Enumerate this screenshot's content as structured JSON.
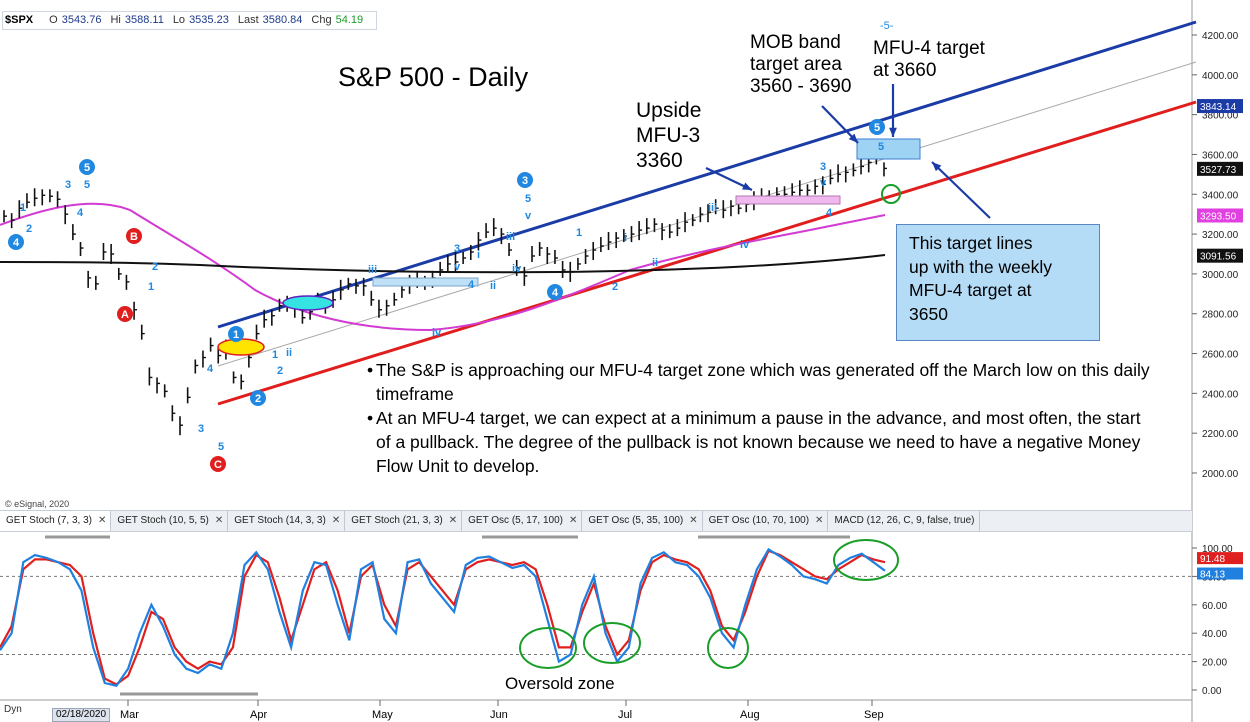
{
  "header": {
    "symbol": "$SPX",
    "fields": [
      {
        "label": "O",
        "value": "3543.76"
      },
      {
        "label": "Hi",
        "value": "3588.11"
      },
      {
        "label": "Lo",
        "value": "3535.23"
      },
      {
        "label": "Last",
        "value": "3580.84"
      },
      {
        "label": "Chg",
        "value": "54.19"
      }
    ]
  },
  "chart_data": [
    {
      "type": "line",
      "title": "S&P 500 - Daily",
      "x_ticks": [
        "Mar",
        "Apr",
        "May",
        "Jun",
        "Jul",
        "Aug",
        "Sep"
      ],
      "y_ticks": [
        "4200.00",
        "4000.00",
        "3800.00",
        "3600.00",
        "3400.00",
        "3200.00",
        "3000.00",
        "2800.00",
        "2600.00",
        "2400.00",
        "2200.00",
        "2000.00"
      ],
      "price_tags": [
        {
          "value": "3843.14",
          "color": "#1b3ca6"
        },
        {
          "value": "3527.73",
          "color": "#111111"
        },
        {
          "value": "3293.50",
          "color": "#e040e0"
        },
        {
          "value": "3091.56",
          "color": "#111111"
        }
      ],
      "series": [
        {
          "values": [
            3290,
            3270,
            3330,
            3360,
            3380,
            3395,
            3390,
            3375,
            3300,
            3200,
            3130,
            2980,
            2950,
            3110,
            3100,
            3000,
            2960,
            2820,
            2700,
            2480,
            2450,
            2410,
            2300,
            2240,
            2380,
            2540,
            2580,
            2640,
            2590,
            2620,
            2480,
            2460,
            2580,
            2700,
            2770,
            2790,
            2840,
            2850,
            2830,
            2780,
            2810,
            2870,
            2830,
            2870,
            2920,
            2950,
            2940,
            2940,
            2870,
            2820,
            2840,
            2870,
            2920,
            2950,
            2960,
            2960,
            2980,
            3020,
            3050,
            3060,
            3080,
            3110,
            3170,
            3210,
            3230,
            3200,
            3120,
            3030,
            2990,
            3090,
            3130,
            3100,
            3080,
            3020,
            3010,
            3050,
            3090,
            3120,
            3140,
            3160,
            3180,
            3190,
            3200,
            3220,
            3230,
            3250,
            3220,
            3210,
            3230,
            3260,
            3270,
            3300,
            3310,
            3330,
            3320,
            3340,
            3330,
            3350,
            3370,
            3380,
            3390,
            3400,
            3400,
            3410,
            3420,
            3420,
            3440,
            3450,
            3480,
            3500,
            3510,
            3520,
            3540,
            3560,
            3580,
            3530
          ]
        }
      ],
      "bands": {
        "upper_channel": [
          [
            2730,
            3390
          ],
          [
            4290,
            3390
          ]
        ],
        "lower_channel": [
          [
            2340,
            2870
          ],
          [
            3860,
            2870
          ]
        ]
      },
      "annotations": {
        "mob_band": "MOB band\ntarget area\n3560 - 3690",
        "mfu4_target": "MFU-4 target\nat 3660",
        "upside_mfu3": "Upside\nMFU-3\n3360",
        "marker_5": "-5-",
        "note_box": "This target lines\nup with the weekly\nMFU-4 target at\n3650",
        "bullets": [
          "The S&P is approaching our MFU-4 target zone which was generated off the March low on this daily timeframe",
          "At an MFU-4 target, we can expect at a minimum a pause in the advance, and most often, the start of a pullback.  The degree of the pullback is not known because we need to have a negative Money Flow Unit to develop."
        ],
        "copyright": "© eSignal, 2020"
      }
    },
    {
      "type": "line",
      "y_ticks": [
        "100.00",
        "80.00",
        "60.00",
        "40.00",
        "20.00",
        "0.00"
      ],
      "price_tags": [
        {
          "value": "91.48",
          "color": "#e0201e"
        },
        {
          "value": "84.13",
          "color": "#2080e0"
        }
      ],
      "oversold_label": "Oversold zone",
      "series": [
        {
          "color": "#e0201e",
          "values": [
            30,
            45,
            85,
            92,
            92,
            90,
            88,
            80,
            40,
            8,
            4,
            10,
            30,
            55,
            50,
            30,
            20,
            15,
            20,
            18,
            30,
            80,
            95,
            90,
            65,
            35,
            60,
            85,
            90,
            70,
            40,
            80,
            88,
            60,
            45,
            85,
            90,
            80,
            70,
            60,
            85,
            90,
            92,
            90,
            88,
            90,
            85,
            60,
            30,
            30,
            55,
            75,
            45,
            25,
            35,
            70,
            90,
            95,
            92,
            90,
            85,
            70,
            45,
            35,
            55,
            80,
            98,
            95,
            90,
            85,
            80,
            78,
            85,
            90,
            95,
            92,
            90
          ]
        },
        {
          "color": "#2080e0",
          "values": [
            28,
            40,
            90,
            95,
            93,
            90,
            85,
            70,
            30,
            5,
            3,
            15,
            40,
            60,
            45,
            25,
            15,
            12,
            18,
            15,
            40,
            88,
            97,
            85,
            55,
            30,
            70,
            90,
            88,
            60,
            35,
            85,
            90,
            50,
            40,
            90,
            92,
            75,
            65,
            55,
            88,
            93,
            94,
            90,
            86,
            88,
            80,
            50,
            20,
            25,
            60,
            80,
            40,
            20,
            30,
            75,
            93,
            97,
            90,
            88,
            80,
            65,
            40,
            30,
            60,
            85,
            99,
            94,
            88,
            80,
            78,
            75,
            88,
            93,
            96,
            90,
            84
          ]
        }
      ]
    }
  ],
  "tabs": [
    "GET Stoch (7, 3, 3)",
    "GET Stoch (10, 5, 5)",
    "GET Stoch (14, 3, 3)",
    "GET Stoch (21, 3, 3)",
    "GET Osc (5, 17, 100)",
    "GET Osc (5, 35, 100)",
    "GET Osc (10, 70, 100)",
    "MACD (12, 26, C, 9, false, true)"
  ],
  "footer": {
    "dyn": "Dyn",
    "start_date": "02/18/2020"
  }
}
